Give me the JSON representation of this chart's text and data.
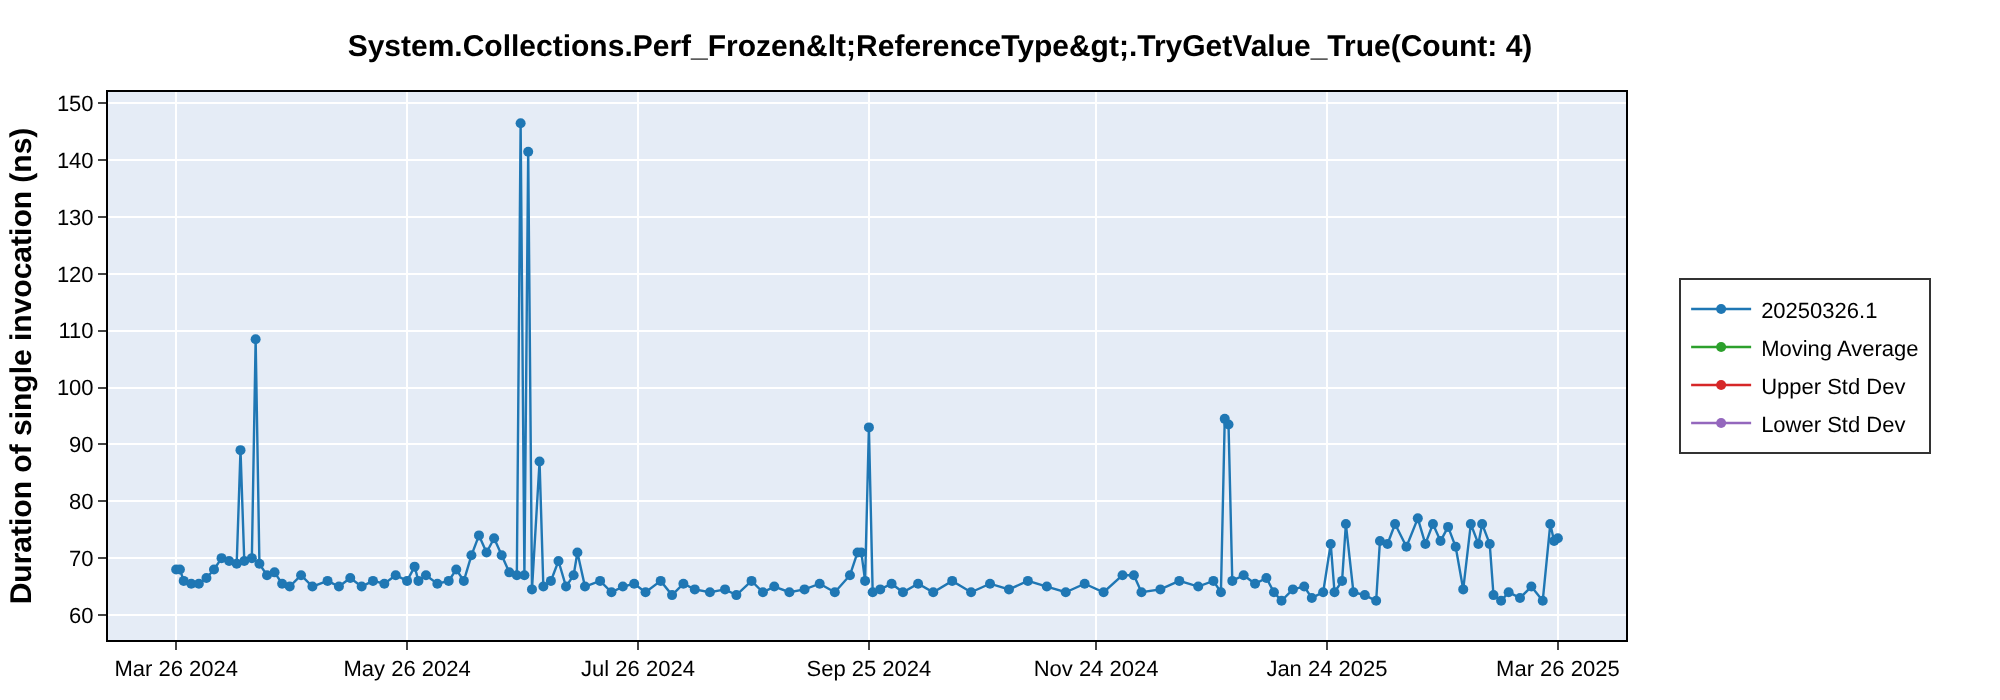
{
  "chart_data": {
    "type": "line",
    "title": "System.Collections.Perf_Frozen&lt;ReferenceType&gt;.TryGetValue_True(Count: 4)",
    "ylabel": "Duration of single invocation (ns)",
    "xlim": [
      "2024-03-08",
      "2025-04-13"
    ],
    "xticks": [
      {
        "value": "2024-03-26",
        "label": "Mar 26 2024"
      },
      {
        "value": "2024-05-26",
        "label": "May 26 2024"
      },
      {
        "value": "2024-07-26",
        "label": "Jul 26 2024"
      },
      {
        "value": "2024-09-25",
        "label": "Sep 25 2024"
      },
      {
        "value": "2024-11-24",
        "label": "Nov 24 2024"
      },
      {
        "value": "2025-01-24",
        "label": "Jan 24 2025"
      },
      {
        "value": "2025-03-26",
        "label": "Mar 26 2025"
      }
    ],
    "ylim": [
      55.6,
      152
    ],
    "yticks": [
      60,
      70,
      80,
      90,
      100,
      110,
      120,
      130,
      140,
      150
    ],
    "grid": true,
    "legend": "right",
    "marker": "circle",
    "line_style": "solid",
    "series": [
      {
        "name": "20250326.1",
        "color": "#1f77b4",
        "x": [
          "2024-03-26",
          "2024-03-27",
          "2024-03-28",
          "2024-03-30",
          "2024-04-01",
          "2024-04-03",
          "2024-04-05",
          "2024-04-07",
          "2024-04-09",
          "2024-04-11",
          "2024-04-12",
          "2024-04-13",
          "2024-04-15",
          "2024-04-16",
          "2024-04-17",
          "2024-04-19",
          "2024-04-21",
          "2024-04-23",
          "2024-04-25",
          "2024-04-28",
          "2024-05-01",
          "2024-05-05",
          "2024-05-08",
          "2024-05-11",
          "2024-05-14",
          "2024-05-17",
          "2024-05-20",
          "2024-05-23",
          "2024-05-26",
          "2024-05-28",
          "2024-05-29",
          "2024-05-31",
          "2024-06-03",
          "2024-06-06",
          "2024-06-08",
          "2024-06-10",
          "2024-06-12",
          "2024-06-14",
          "2024-06-16",
          "2024-06-18",
          "2024-06-20",
          "2024-06-22",
          "2024-06-24",
          "2024-06-25",
          "2024-06-26",
          "2024-06-27",
          "2024-06-28",
          "2024-06-30",
          "2024-07-01",
          "2024-07-03",
          "2024-07-05",
          "2024-07-07",
          "2024-07-09",
          "2024-07-10",
          "2024-07-12",
          "2024-07-16",
          "2024-07-19",
          "2024-07-22",
          "2024-07-25",
          "2024-07-28",
          "2024-08-01",
          "2024-08-04",
          "2024-08-07",
          "2024-08-10",
          "2024-08-14",
          "2024-08-18",
          "2024-08-21",
          "2024-08-25",
          "2024-08-28",
          "2024-08-31",
          "2024-09-04",
          "2024-09-08",
          "2024-09-12",
          "2024-09-16",
          "2024-09-20",
          "2024-09-22",
          "2024-09-23",
          "2024-09-24",
          "2024-09-25",
          "2024-09-26",
          "2024-09-28",
          "2024-10-01",
          "2024-10-04",
          "2024-10-08",
          "2024-10-12",
          "2024-10-17",
          "2024-10-22",
          "2024-10-27",
          "2024-11-01",
          "2024-11-06",
          "2024-11-11",
          "2024-11-16",
          "2024-11-21",
          "2024-11-26",
          "2024-12-01",
          "2024-12-04",
          "2024-12-06",
          "2024-12-11",
          "2024-12-16",
          "2024-12-21",
          "2024-12-25",
          "2024-12-27",
          "2024-12-28",
          "2024-12-29",
          "2024-12-30",
          "2025-01-02",
          "2025-01-05",
          "2025-01-08",
          "2025-01-10",
          "2025-01-12",
          "2025-01-15",
          "2025-01-18",
          "2025-01-20",
          "2025-01-23",
          "2025-01-25",
          "2025-01-26",
          "2025-01-28",
          "2025-01-29",
          "2025-01-31",
          "2025-02-03",
          "2025-02-06",
          "2025-02-07",
          "2025-02-09",
          "2025-02-11",
          "2025-02-14",
          "2025-02-17",
          "2025-02-19",
          "2025-02-21",
          "2025-02-23",
          "2025-02-25",
          "2025-02-27",
          "2025-03-01",
          "2025-03-03",
          "2025-03-05",
          "2025-03-06",
          "2025-03-08",
          "2025-03-09",
          "2025-03-11",
          "2025-03-13",
          "2025-03-16",
          "2025-03-19",
          "2025-03-22",
          "2025-03-24",
          "2025-03-25",
          "2025-03-26"
        ],
        "values": [
          68,
          68,
          66,
          65.5,
          65.5,
          66.5,
          68,
          70,
          69.5,
          69,
          89,
          69.5,
          70,
          108.5,
          69,
          67,
          67.5,
          65.5,
          65,
          67,
          65,
          66,
          65,
          66.5,
          65,
          66,
          65.5,
          67,
          66,
          68.5,
          66,
          67,
          65.5,
          66,
          68,
          66,
          70.5,
          74,
          71,
          73.5,
          70.5,
          67.5,
          67,
          146.5,
          67,
          141.5,
          64.5,
          87,
          65,
          66,
          69.5,
          65,
          67,
          71,
          65,
          66,
          64,
          65,
          65.5,
          64,
          66,
          63.5,
          65.5,
          64.5,
          64,
          64.5,
          63.5,
          66,
          64,
          65,
          64,
          64.5,
          65.5,
          64,
          67,
          71,
          71,
          66,
          93,
          64,
          64.5,
          65.5,
          64,
          65.5,
          64,
          66,
          64,
          65.5,
          64.5,
          66,
          65,
          64,
          65.5,
          64,
          67,
          67,
          64,
          64.5,
          66,
          65,
          66,
          64,
          94.5,
          93.5,
          66,
          67,
          65.5,
          66.5,
          64,
          62.5,
          64.5,
          65,
          63,
          64,
          72.5,
          64,
          66,
          76,
          64,
          63.5,
          62.5,
          73,
          72.5,
          76,
          72,
          77,
          72.5,
          76,
          73,
          75.5,
          72,
          64.5,
          76,
          72.5,
          76,
          72.5,
          63.5,
          62.5,
          64,
          63,
          65,
          62.5,
          76,
          73,
          73.5
        ]
      },
      {
        "name": "Moving Average",
        "color": "#2ca02c"
      },
      {
        "name": "Upper Std Dev",
        "color": "#d62728"
      },
      {
        "name": "Lower Std Dev",
        "color": "#9467bd"
      }
    ]
  }
}
